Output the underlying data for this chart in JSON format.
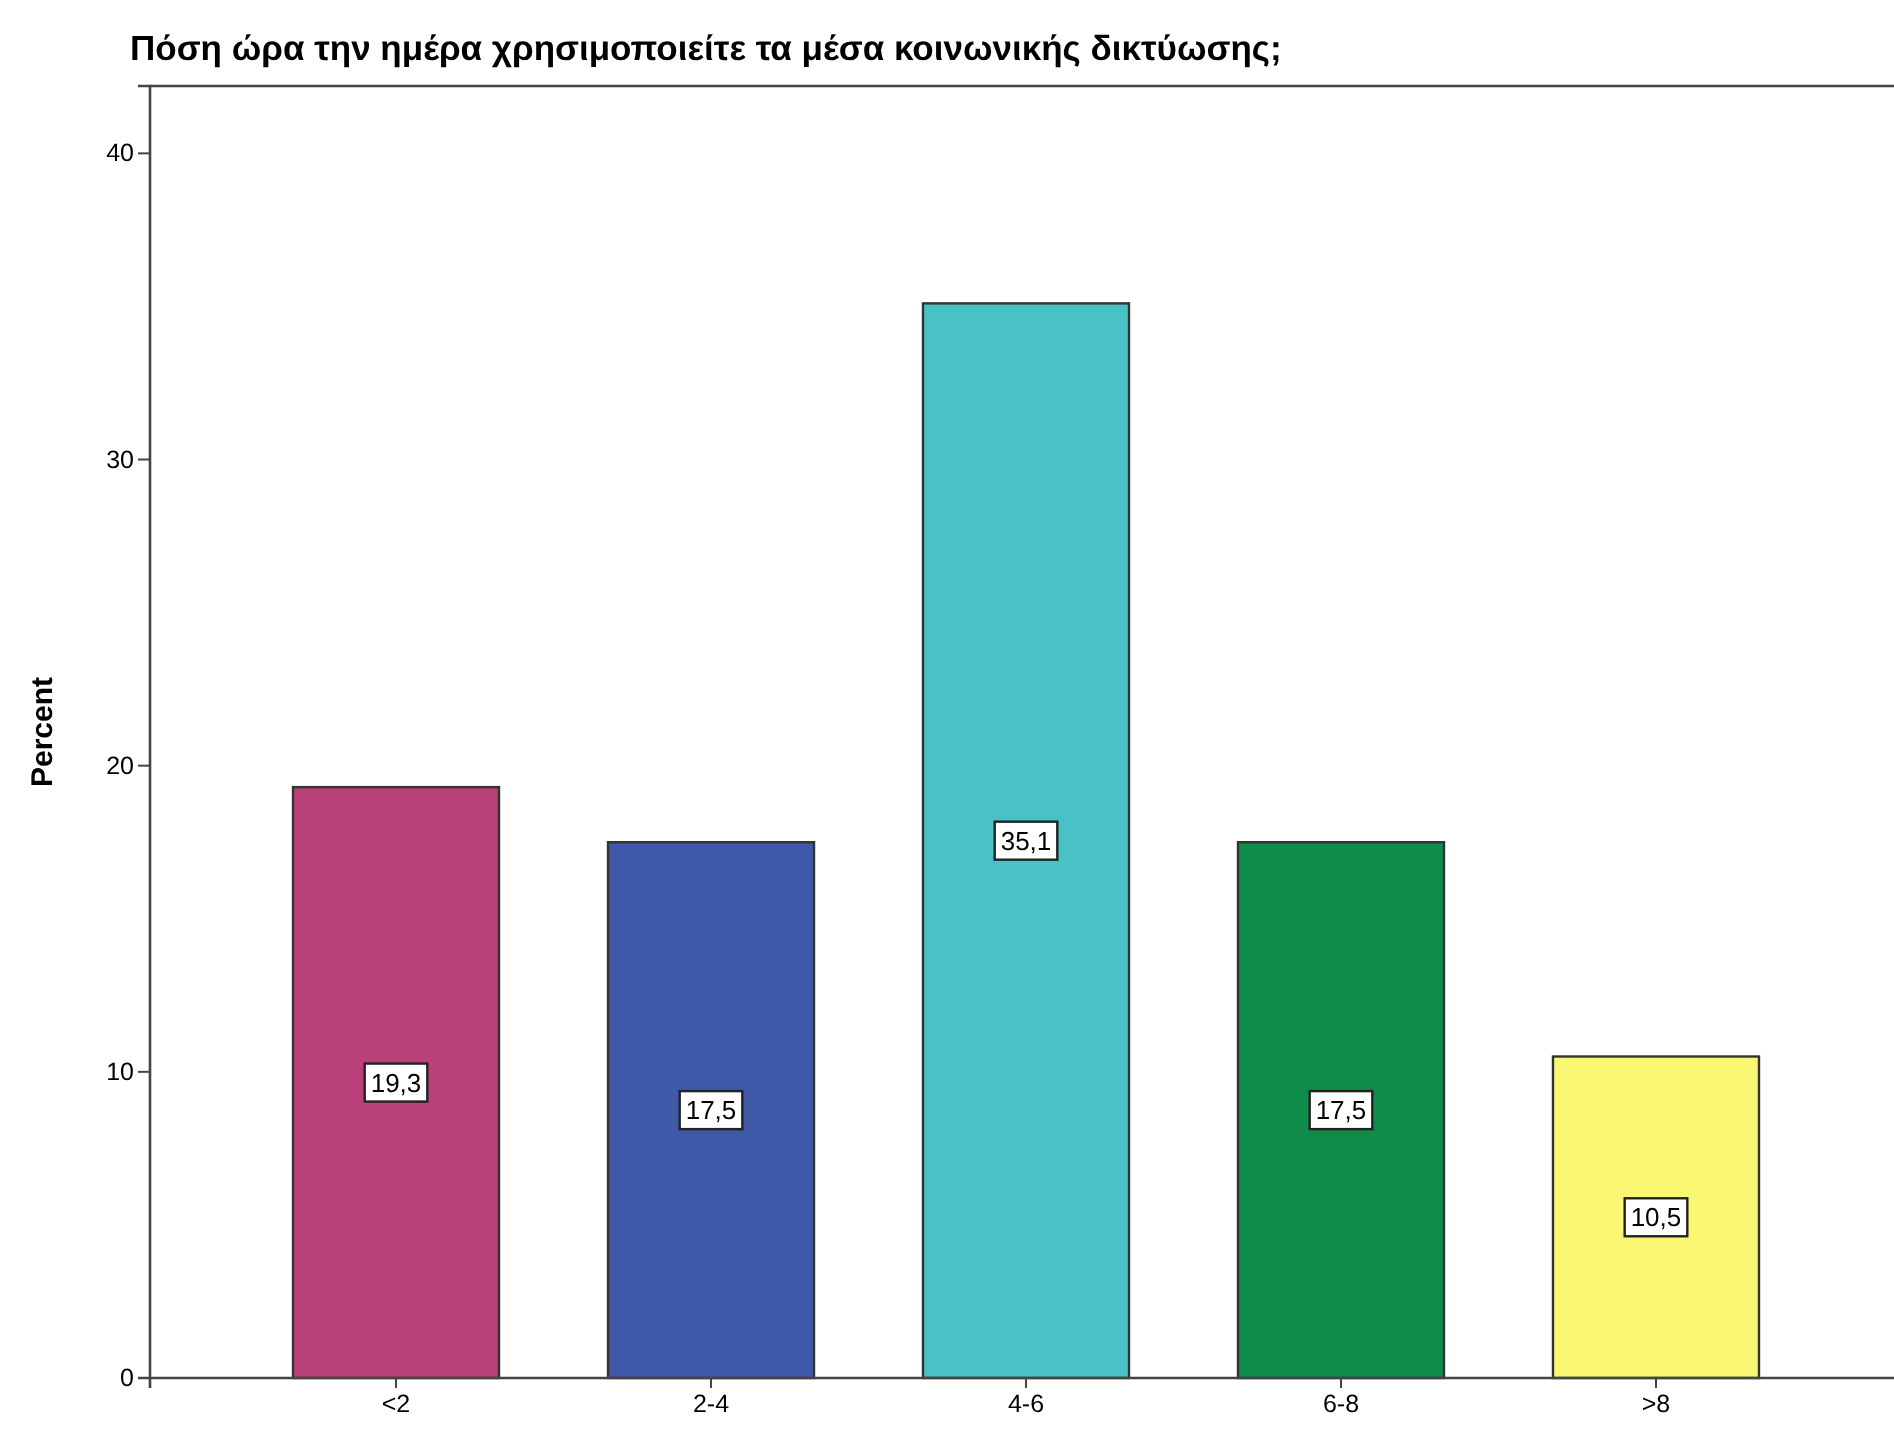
{
  "chart_data": {
    "type": "bar",
    "title": "Πόση ώρα την ημέρα χρησιμοποιείτε τα μέσα κοινωνικής δικτύωσης;",
    "ylabel": "Percent",
    "categories": [
      "<2",
      "2-4",
      "4-6",
      "6-8",
      ">8"
    ],
    "values": [
      19.3,
      17.5,
      35.1,
      17.5,
      10.5
    ],
    "colors": [
      "#b94078",
      "#3f59a8",
      "#48c2c5",
      "#0f8c4a",
      "#faf773"
    ],
    "value_labels": [
      "19,3",
      "17,5",
      "35,1",
      "17,5",
      "10,5"
    ],
    "ylim": [
      0,
      42.2
    ],
    "yticks": [
      0,
      10,
      20,
      30,
      40
    ]
  }
}
